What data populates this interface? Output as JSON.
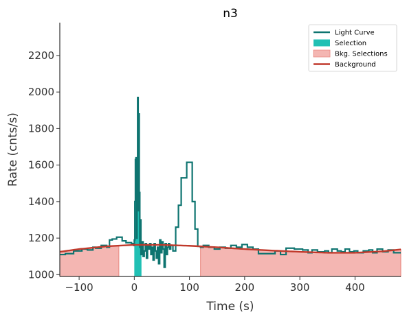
{
  "chart_data": {
    "type": "line",
    "title": "n3",
    "xlabel": "Time (s)",
    "ylabel": "Rate (cnts/s)",
    "xlim": [
      -135,
      483
    ],
    "ylim": [
      990,
      2380
    ],
    "x_ticks": [
      -100,
      0,
      100,
      200,
      300,
      400
    ],
    "x_tick_labels": [
      "−100",
      "0",
      "100",
      "200",
      "300",
      "400"
    ],
    "y_ticks": [
      1000,
      1200,
      1400,
      1600,
      1800,
      2000,
      2200
    ],
    "y_tick_labels": [
      "1000",
      "1200",
      "1400",
      "1600",
      "1800",
      "2000",
      "2200"
    ],
    "legend_position": "top-right",
    "legend": [
      {
        "label": "Light Curve",
        "kind": "line",
        "color": "#0e7470"
      },
      {
        "label": "Selection",
        "kind": "patch",
        "color": "#20c0b4"
      },
      {
        "label": "Bkg. Selections",
        "kind": "patch",
        "color": "#f4b6b2"
      },
      {
        "label": "Background",
        "kind": "line",
        "color": "#c0392b"
      }
    ],
    "colors": {
      "light_curve": "#0e7470",
      "selection": "#20c0b4",
      "bkg_selection": "#f4b6b2",
      "bkg_selection_edge": "#e8877f",
      "background": "#c0392b"
    },
    "series": [
      {
        "name": "Light Curve",
        "style": "step",
        "points": [
          [
            -135,
            1110
          ],
          [
            -125,
            1115
          ],
          [
            -110,
            1130
          ],
          [
            -95,
            1140
          ],
          [
            -85,
            1135
          ],
          [
            -75,
            1150
          ],
          [
            -70,
            1145
          ],
          [
            -60,
            1160
          ],
          [
            -50,
            1150
          ],
          [
            -45,
            1190
          ],
          [
            -40,
            1195
          ],
          [
            -32,
            1205
          ],
          [
            -22,
            1185
          ],
          [
            -15,
            1175
          ],
          [
            -5,
            1170
          ],
          [
            -1,
            1160
          ],
          [
            0,
            1190
          ],
          [
            1,
            1400
          ],
          [
            2,
            1630
          ],
          [
            3,
            1640
          ],
          [
            4,
            1200
          ],
          [
            5,
            1600
          ],
          [
            6,
            1970
          ],
          [
            7,
            1350
          ],
          [
            8,
            1880
          ],
          [
            9,
            1450
          ],
          [
            10,
            1150
          ],
          [
            11,
            1300
          ],
          [
            12,
            1110
          ],
          [
            14,
            1180
          ],
          [
            16,
            1100
          ],
          [
            18,
            1130
          ],
          [
            20,
            1170
          ],
          [
            22,
            1090
          ],
          [
            24,
            1160
          ],
          [
            26,
            1140
          ],
          [
            28,
            1170
          ],
          [
            30,
            1110
          ],
          [
            32,
            1150
          ],
          [
            34,
            1080
          ],
          [
            36,
            1170
          ],
          [
            38,
            1130
          ],
          [
            40,
            1090
          ],
          [
            42,
            1150
          ],
          [
            44,
            1060
          ],
          [
            46,
            1190
          ],
          [
            48,
            1120
          ],
          [
            50,
            1180
          ],
          [
            52,
            1140
          ],
          [
            54,
            1040
          ],
          [
            56,
            1170
          ],
          [
            58,
            1110
          ],
          [
            60,
            1150
          ],
          [
            62,
            1170
          ],
          [
            64,
            1140
          ],
          [
            66,
            1160
          ],
          [
            70,
            1130
          ],
          [
            75,
            1260
          ],
          [
            80,
            1380
          ],
          [
            85,
            1530
          ],
          [
            90,
            1530
          ],
          [
            95,
            1615
          ],
          [
            105,
            1400
          ],
          [
            110,
            1250
          ],
          [
            115,
            1155
          ],
          [
            120,
            1150
          ],
          [
            125,
            1160
          ],
          [
            135,
            1150
          ],
          [
            145,
            1140
          ],
          [
            155,
            1150
          ],
          [
            165,
            1145
          ],
          [
            175,
            1160
          ],
          [
            185,
            1150
          ],
          [
            195,
            1165
          ],
          [
            205,
            1150
          ],
          [
            215,
            1140
          ],
          [
            225,
            1115
          ],
          [
            240,
            1115
          ],
          [
            255,
            1130
          ],
          [
            265,
            1110
          ],
          [
            275,
            1145
          ],
          [
            290,
            1140
          ],
          [
            305,
            1135
          ],
          [
            315,
            1120
          ],
          [
            322,
            1135
          ],
          [
            332,
            1125
          ],
          [
            345,
            1130
          ],
          [
            352,
            1120
          ],
          [
            358,
            1140
          ],
          [
            368,
            1130
          ],
          [
            375,
            1125
          ],
          [
            382,
            1140
          ],
          [
            390,
            1125
          ],
          [
            398,
            1130
          ],
          [
            405,
            1120
          ],
          [
            415,
            1130
          ],
          [
            425,
            1135
          ],
          [
            432,
            1120
          ],
          [
            440,
            1140
          ],
          [
            450,
            1125
          ],
          [
            460,
            1135
          ],
          [
            470,
            1120
          ],
          [
            483,
            1120
          ]
        ]
      },
      {
        "name": "Background",
        "style": "smooth",
        "points": [
          [
            -135,
            1125
          ],
          [
            -100,
            1140
          ],
          [
            -50,
            1155
          ],
          [
            0,
            1163
          ],
          [
            50,
            1163
          ],
          [
            100,
            1158
          ],
          [
            150,
            1150
          ],
          [
            200,
            1140
          ],
          [
            250,
            1132
          ],
          [
            300,
            1125
          ],
          [
            350,
            1120
          ],
          [
            400,
            1120
          ],
          [
            450,
            1128
          ],
          [
            483,
            1138
          ]
        ]
      }
    ],
    "selection": [
      0,
      13
    ],
    "bkg_selections": [
      [
        -135,
        -28
      ],
      [
        120,
        483
      ]
    ]
  }
}
